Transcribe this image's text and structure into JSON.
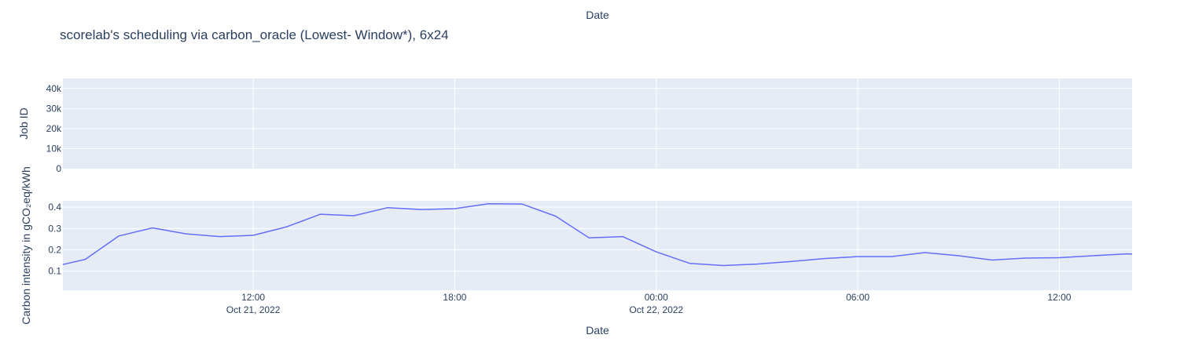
{
  "chart_data": [
    {
      "type": "line",
      "name": "job-panel",
      "title": "scorelab's scheduling via carbon_oracle (Lowest- Window*), 6x24",
      "xlabel_top": "Date",
      "ylabel": "Job ID",
      "ylim": [
        0,
        45000
      ],
      "yticks": [
        0,
        10000,
        20000,
        30000,
        40000
      ],
      "ytick_labels": [
        "0",
        "10k",
        "20k",
        "30k",
        "40k"
      ],
      "grid": true,
      "series": []
    },
    {
      "type": "line",
      "name": "carbon-panel",
      "xlabel": "Date",
      "ylabel": "Carbon intensity in gCO₂eq/kWh",
      "xlim": [
        "2022-10-21 06:20",
        "2022-10-22 14:10"
      ],
      "ylim": [
        0.01,
        0.43
      ],
      "yticks": [
        0.1,
        0.2,
        0.3,
        0.4
      ],
      "ytick_labels": [
        "0.1",
        "0.2",
        "0.3",
        "0.4"
      ],
      "xticks": [
        "2022-10-21 12:00",
        "2022-10-21 18:00",
        "2022-10-22 00:00",
        "2022-10-22 06:00",
        "2022-10-22 12:00"
      ],
      "xtick_labels": [
        [
          "12:00",
          "Oct 21, 2022"
        ],
        [
          "18:00",
          ""
        ],
        [
          "00:00",
          "Oct 22, 2022"
        ],
        [
          "06:00",
          ""
        ],
        [
          "12:00",
          ""
        ]
      ],
      "grid": true,
      "series": [
        {
          "color": "#636efa",
          "x": [
            "2022-10-21 06:20",
            "2022-10-21 07:00",
            "2022-10-21 08:00",
            "2022-10-21 09:00",
            "2022-10-21 10:00",
            "2022-10-21 11:00",
            "2022-10-21 12:00",
            "2022-10-21 13:00",
            "2022-10-21 14:00",
            "2022-10-21 15:00",
            "2022-10-21 16:00",
            "2022-10-21 17:00",
            "2022-10-21 18:00",
            "2022-10-21 19:00",
            "2022-10-21 20:00",
            "2022-10-21 21:00",
            "2022-10-21 22:00",
            "2022-10-21 23:00",
            "2022-10-22 00:00",
            "2022-10-22 01:00",
            "2022-10-22 02:00",
            "2022-10-22 03:00",
            "2022-10-22 04:00",
            "2022-10-22 05:00",
            "2022-10-22 06:00",
            "2022-10-22 07:00",
            "2022-10-22 08:00",
            "2022-10-22 09:00",
            "2022-10-22 10:00",
            "2022-10-22 11:00",
            "2022-10-22 12:00",
            "2022-10-22 13:00",
            "2022-10-22 14:00",
            "2022-10-22 14:10"
          ],
          "y": [
            0.131,
            0.155,
            0.265,
            0.303,
            0.275,
            0.262,
            0.268,
            0.308,
            0.367,
            0.36,
            0.398,
            0.389,
            0.393,
            0.416,
            0.415,
            0.358,
            0.256,
            0.262,
            0.19,
            0.136,
            0.126,
            0.133,
            0.145,
            0.159,
            0.168,
            0.168,
            0.187,
            0.172,
            0.152,
            0.161,
            0.163,
            0.172,
            0.181,
            0.18
          ]
        }
      ]
    }
  ]
}
